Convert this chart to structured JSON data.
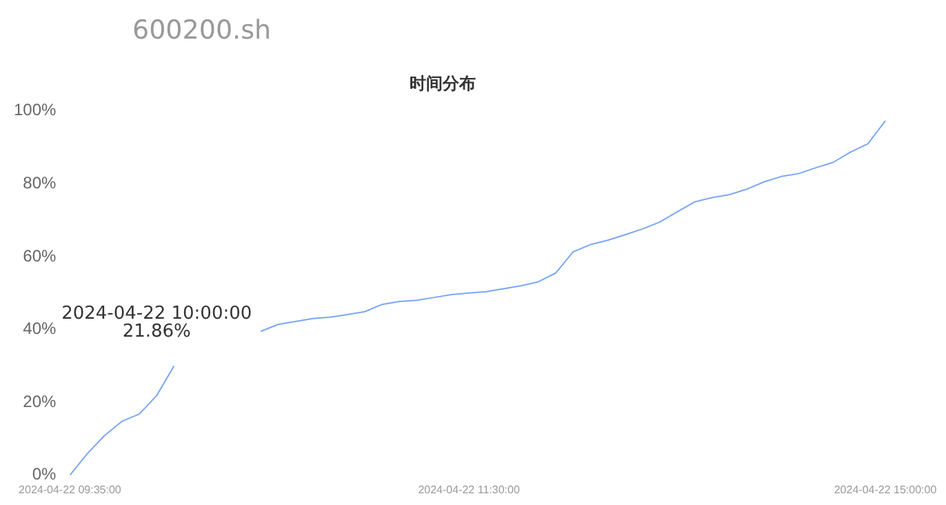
{
  "chart_data": {
    "type": "line",
    "title": "时间分布",
    "subtitle": "600200.sh",
    "categories": [
      "2024-04-22 09:35:00",
      null,
      null,
      null,
      null,
      null,
      null,
      null,
      null,
      null,
      null,
      null,
      null,
      null,
      null,
      null,
      null,
      null,
      null,
      null,
      null,
      null,
      null,
      "2024-04-22 11:30:00",
      null,
      null,
      null,
      null,
      null,
      null,
      null,
      null,
      null,
      null,
      null,
      null,
      null,
      null,
      null,
      null,
      null,
      null,
      null,
      null,
      null,
      null,
      null,
      "2024-04-22 15:00:00"
    ],
    "series": [
      {
        "color": "#7aa6f5",
        "values": [
          0,
          5.9,
          10.9,
          14.8,
          16.8,
          21.86,
          30,
          null,
          null,
          null,
          null,
          39.5,
          41.4,
          42.2,
          43,
          43.4,
          44.1,
          44.9,
          46.9,
          47.7,
          48,
          48.8,
          49.6,
          50,
          50.4,
          51.2,
          52,
          53.1,
          55.5,
          61.3,
          63.3,
          64.5,
          66,
          67.6,
          69.5,
          72.3,
          75,
          76.2,
          77,
          78.5,
          80.5,
          82,
          82.8,
          84.4,
          85.9,
          88.7,
          91,
          97.3
        ]
      }
    ],
    "ylim": [
      0,
      100
    ],
    "yticks": [
      {
        "value": 0,
        "label": "0%"
      },
      {
        "value": 20,
        "label": "20%"
      },
      {
        "value": 40,
        "label": "40%"
      },
      {
        "value": 60,
        "label": "60%"
      },
      {
        "value": 80,
        "label": "80%"
      },
      {
        "value": 100,
        "label": "100%"
      }
    ],
    "annotations": [
      "2024-04-22 10:00:00",
      "21.86%"
    ],
    "grid": false,
    "legend": false,
    "marker": "none",
    "line_style": "solid"
  }
}
